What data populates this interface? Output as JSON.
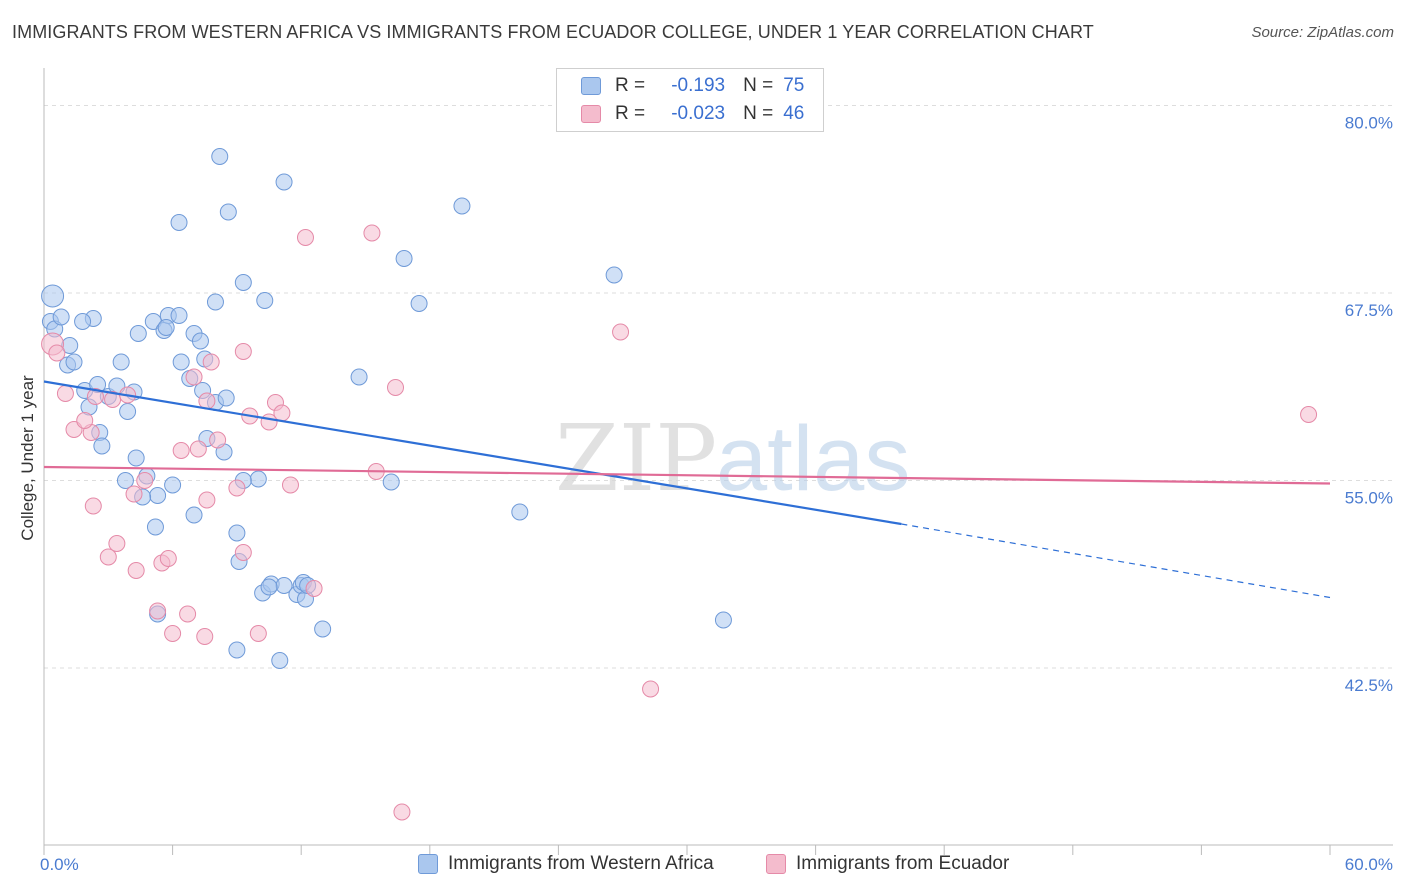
{
  "title": "IMMIGRANTS FROM WESTERN AFRICA VS IMMIGRANTS FROM ECUADOR COLLEGE, UNDER 1 YEAR CORRELATION CHART",
  "source": "Source: ZipAtlas.com",
  "watermark": {
    "part1": "ZIP",
    "part2": "atlas"
  },
  "legend": {
    "r_label": "R =",
    "n_label": "N =",
    "series1": {
      "r": "-0.193",
      "n": "75"
    },
    "series2": {
      "r": "-0.023",
      "n": "46"
    }
  },
  "colors": {
    "blue_fill": "#aac7ee",
    "blue_stroke": "#6f9ad8",
    "blue_line": "#2e6fd6",
    "pink_fill": "#f4bccd",
    "pink_stroke": "#e58aa8",
    "pink_line": "#e06b96",
    "tick_text": "#4a7bd0",
    "grid": "#dddddd"
  },
  "chart_data": {
    "type": "scatter",
    "title": "IMMIGRANTS FROM WESTERN AFRICA VS IMMIGRANTS FROM ECUADOR COLLEGE, UNDER 1 YEAR CORRELATION CHART",
    "xlabel": "",
    "ylabel": "College, Under 1 year",
    "xlim": [
      0,
      60
    ],
    "ylim": [
      30.7,
      82.5
    ],
    "x_ticks": [
      "0.0%",
      "60.0%"
    ],
    "y_ticks": [
      {
        "value": 80.0,
        "label": "80.0%"
      },
      {
        "value": 67.5,
        "label": "67.5%"
      },
      {
        "value": 55.0,
        "label": "55.0%"
      },
      {
        "value": 42.5,
        "label": "42.5%"
      }
    ],
    "series": [
      {
        "name": "Immigrants from Western Africa",
        "color": "#aac7ee",
        "points": [
          [
            0.4,
            67.3
          ],
          [
            0.3,
            65.6
          ],
          [
            0.5,
            65.1
          ],
          [
            0.8,
            65.9
          ],
          [
            1.2,
            64.0
          ],
          [
            1.1,
            62.7
          ],
          [
            1.4,
            62.9
          ],
          [
            2.3,
            65.8
          ],
          [
            1.8,
            65.6
          ],
          [
            1.9,
            61.0
          ],
          [
            2.5,
            61.4
          ],
          [
            2.1,
            59.9
          ],
          [
            3.0,
            60.6
          ],
          [
            2.6,
            58.2
          ],
          [
            2.7,
            57.3
          ],
          [
            3.4,
            61.3
          ],
          [
            3.6,
            62.9
          ],
          [
            4.2,
            60.9
          ],
          [
            3.9,
            59.6
          ],
          [
            4.4,
            64.8
          ],
          [
            5.1,
            65.6
          ],
          [
            5.6,
            65.0
          ],
          [
            5.8,
            66.0
          ],
          [
            6.3,
            66.0
          ],
          [
            5.7,
            65.2
          ],
          [
            6.4,
            62.9
          ],
          [
            7.0,
            64.8
          ],
          [
            7.3,
            64.3
          ],
          [
            7.5,
            63.1
          ],
          [
            6.8,
            61.8
          ],
          [
            7.4,
            61.0
          ],
          [
            8.0,
            60.2
          ],
          [
            8.5,
            60.5
          ],
          [
            7.6,
            57.8
          ],
          [
            8.4,
            56.9
          ],
          [
            4.8,
            55.3
          ],
          [
            3.8,
            55.0
          ],
          [
            5.3,
            54.0
          ],
          [
            6.0,
            54.7
          ],
          [
            4.6,
            53.9
          ],
          [
            5.2,
            51.9
          ],
          [
            7.0,
            52.7
          ],
          [
            8.0,
            66.9
          ],
          [
            9.3,
            68.2
          ],
          [
            10.3,
            67.0
          ],
          [
            8.6,
            72.9
          ],
          [
            6.3,
            72.2
          ],
          [
            8.2,
            76.6
          ],
          [
            11.2,
            74.9
          ],
          [
            10.0,
            55.1
          ],
          [
            9.3,
            55.0
          ],
          [
            9.0,
            51.5
          ],
          [
            9.1,
            49.6
          ],
          [
            5.3,
            46.1
          ],
          [
            9.0,
            43.7
          ],
          [
            11.0,
            43.0
          ],
          [
            10.2,
            47.5
          ],
          [
            10.6,
            48.1
          ],
          [
            11.2,
            48.0
          ],
          [
            11.8,
            47.4
          ],
          [
            12.0,
            48.0
          ],
          [
            12.1,
            48.2
          ],
          [
            12.2,
            47.1
          ],
          [
            13.0,
            45.1
          ],
          [
            14.7,
            61.9
          ],
          [
            16.2,
            54.9
          ],
          [
            16.8,
            69.8
          ],
          [
            17.5,
            66.8
          ],
          [
            19.5,
            73.3
          ],
          [
            22.2,
            52.9
          ],
          [
            26.6,
            68.7
          ],
          [
            31.7,
            45.7
          ],
          [
            12.3,
            48.0
          ],
          [
            10.5,
            47.9
          ],
          [
            4.3,
            56.5
          ]
        ]
      },
      {
        "name": "Immigrants from Ecuador",
        "color": "#f4bccd",
        "points": [
          [
            0.4,
            64.1
          ],
          [
            0.6,
            63.5
          ],
          [
            1.0,
            60.8
          ],
          [
            1.4,
            58.4
          ],
          [
            2.2,
            58.2
          ],
          [
            1.9,
            59.0
          ],
          [
            2.4,
            60.6
          ],
          [
            3.2,
            60.4
          ],
          [
            3.9,
            60.7
          ],
          [
            2.3,
            53.3
          ],
          [
            3.0,
            49.9
          ],
          [
            3.4,
            50.8
          ],
          [
            4.3,
            49.0
          ],
          [
            4.2,
            54.1
          ],
          [
            4.7,
            55.0
          ],
          [
            5.3,
            46.3
          ],
          [
            5.5,
            49.5
          ],
          [
            5.8,
            49.8
          ],
          [
            6.0,
            44.8
          ],
          [
            6.7,
            46.1
          ],
          [
            7.5,
            44.6
          ],
          [
            6.4,
            57.0
          ],
          [
            7.0,
            61.9
          ],
          [
            7.2,
            57.1
          ],
          [
            7.6,
            53.7
          ],
          [
            7.8,
            62.9
          ],
          [
            8.1,
            57.7
          ],
          [
            9.3,
            63.6
          ],
          [
            9.0,
            54.5
          ],
          [
            9.3,
            50.2
          ],
          [
            9.6,
            59.3
          ],
          [
            10.0,
            44.8
          ],
          [
            10.5,
            58.9
          ],
          [
            10.8,
            60.2
          ],
          [
            11.1,
            59.5
          ],
          [
            11.5,
            54.7
          ],
          [
            12.2,
            71.2
          ],
          [
            12.6,
            47.8
          ],
          [
            15.3,
            71.5
          ],
          [
            15.5,
            55.6
          ],
          [
            16.4,
            61.2
          ],
          [
            16.7,
            32.9
          ],
          [
            26.9,
            64.9
          ],
          [
            28.3,
            41.1
          ],
          [
            59.0,
            59.4
          ],
          [
            7.6,
            60.3
          ]
        ]
      }
    ],
    "trendlines": [
      {
        "series": "Immigrants from Western Africa",
        "x_start": 0,
        "y_start": 61.6,
        "x_end": 40.0,
        "y_end": 52.1,
        "dashed_x_end": 60.0,
        "dashed_y_end": 47.2
      },
      {
        "series": "Immigrants from Ecuador",
        "x_start": 0,
        "y_start": 55.9,
        "x_end": 60.0,
        "y_end": 54.8
      }
    ]
  },
  "bottom_legend": {
    "series1_label": "Immigrants from Western Africa",
    "series2_label": "Immigrants from Ecuador"
  }
}
